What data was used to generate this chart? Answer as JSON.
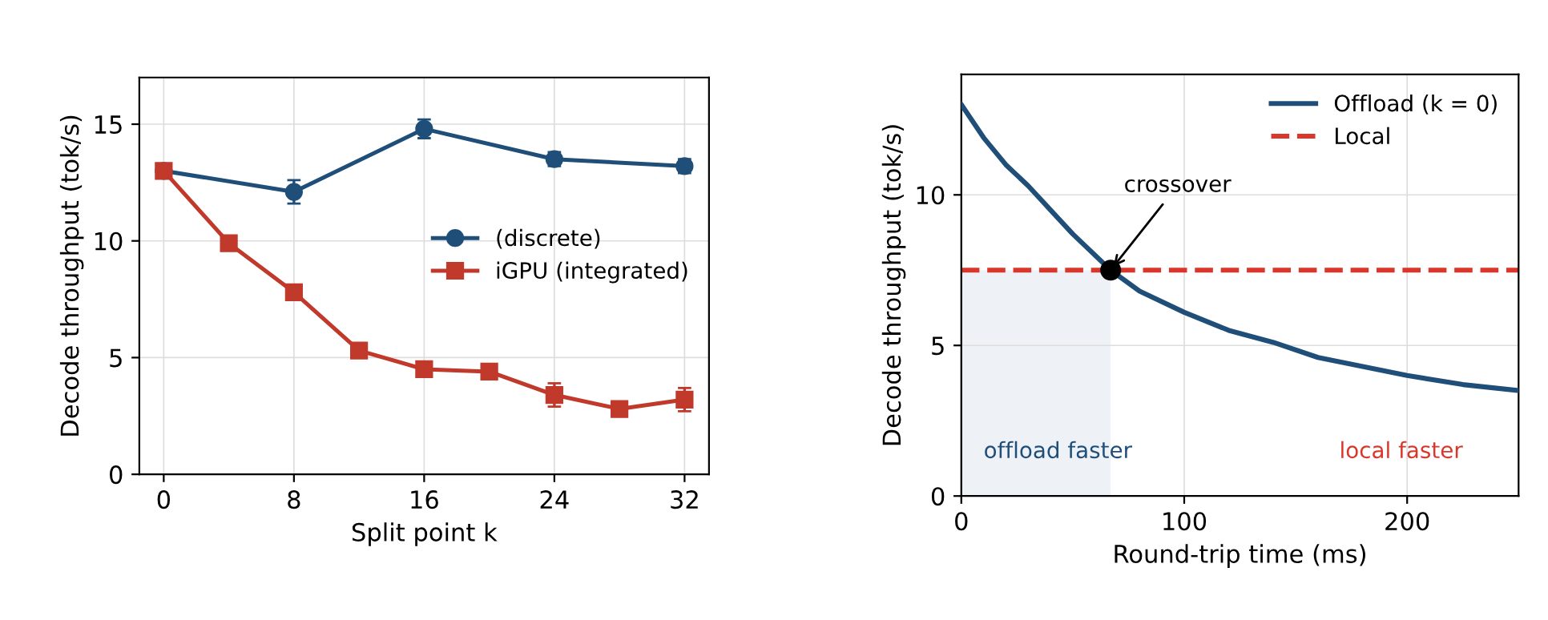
{
  "chart_data": [
    {
      "type": "line",
      "xlabel": "Split point k",
      "ylabel": "Decode throughput (tok/s)",
      "xlim": [
        -1.5,
        33.5
      ],
      "ylim": [
        0,
        17
      ],
      "xticks": [
        0,
        8,
        16,
        24,
        32
      ],
      "yticks": [
        0,
        5,
        10,
        15
      ],
      "grid": true,
      "legend": "right",
      "series": [
        {
          "name": "(discrete)",
          "color": "#1f4e79",
          "marker": "circle",
          "x": [
            0,
            8,
            16,
            24,
            32
          ],
          "values": [
            13.0,
            12.1,
            14.8,
            13.5,
            13.2
          ],
          "errors": [
            null,
            0.5,
            0.4,
            0.3,
            0.3
          ]
        },
        {
          "name": "iGPU (integrated)",
          "color": "#c0392b",
          "marker": "square",
          "x": [
            0,
            4,
            8,
            12,
            16,
            20,
            24,
            28,
            32
          ],
          "values": [
            13.0,
            9.9,
            7.8,
            5.3,
            4.5,
            4.4,
            3.4,
            2.8,
            3.2
          ],
          "errors": [
            null,
            0.3,
            0.3,
            0.3,
            0.3,
            0.3,
            0.5,
            0.3,
            0.5
          ]
        }
      ]
    },
    {
      "type": "line",
      "xlabel": "Round-trip time (ms)",
      "ylabel": "Decode throughput (tok/s)",
      "xlim": [
        0,
        250
      ],
      "ylim": [
        0,
        14
      ],
      "xticks": [
        0,
        100,
        200
      ],
      "yticks": [
        0,
        5,
        10
      ],
      "grid": true,
      "legend": "top right",
      "series": [
        {
          "name": "Offload (k = 0)",
          "color": "#1f4e79",
          "x": [
            0,
            10,
            20,
            30,
            40,
            50,
            67,
            80,
            100,
            120,
            140,
            160,
            180,
            200,
            225,
            250
          ],
          "values": [
            13.0,
            11.9,
            11.0,
            10.3,
            9.5,
            8.7,
            7.5,
            6.8,
            6.1,
            5.5,
            5.1,
            4.6,
            4.3,
            4.0,
            3.7,
            3.5
          ]
        },
        {
          "type": "scatter",
          "color": "#000000",
          "x": [
            67
          ],
          "values": [
            7.5
          ]
        }
      ],
      "ref_lines": [
        {
          "axis": "y",
          "value": 7.5,
          "label": "Local",
          "color": "#d9372b",
          "line_style": "dashed"
        }
      ],
      "bands": [
        {
          "axis": "x",
          "from": 0,
          "to": 67,
          "color": "#eef2f7"
        }
      ],
      "annotations": [
        {
          "text": "crossover",
          "x": 67,
          "y": 7.5
        },
        "offload faster",
        "local faster"
      ]
    }
  ]
}
